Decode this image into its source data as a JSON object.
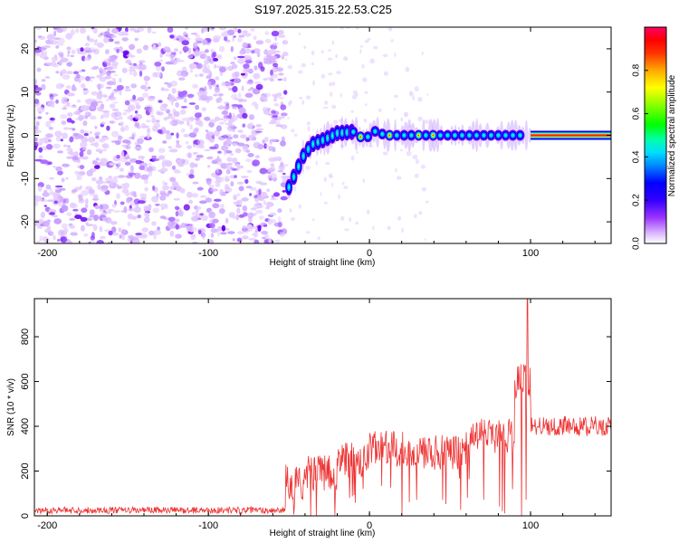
{
  "figure_title": "S197.2025.315.22.53.C25",
  "chart_data": [
    {
      "type": "heatmap",
      "name": "spectrogram",
      "xlabel": "Height of straight line (km)",
      "ylabel": "Frequency (Hz)",
      "xlim": [
        -208,
        150
      ],
      "ylim": [
        -25,
        25
      ],
      "xticks": [
        -200,
        -100,
        0,
        100
      ],
      "yticks": [
        -20,
        -10,
        0,
        10,
        20
      ],
      "colorbar": {
        "label": "Normalized spectral amplitude",
        "range": [
          0,
          1
        ],
        "ticks": [
          "0.0",
          "0.2",
          "0.4",
          "0.6",
          "0.8"
        ],
        "colormap": [
          "#ffffff",
          "#d9b3ff",
          "#9933ff",
          "#5500ee",
          "#0000ff",
          "#00aaff",
          "#00ffcc",
          "#00ff00",
          "#99ff00",
          "#ffff00",
          "#ff9900",
          "#ff0000",
          "#ff0066"
        ]
      },
      "noise_region_km": [
        -208,
        -52
      ],
      "carrier_track": [
        {
          "x": -50,
          "f": -12
        },
        {
          "x": -45,
          "f": -8
        },
        {
          "x": -40,
          "f": -4
        },
        {
          "x": -35,
          "f": -2
        },
        {
          "x": -28,
          "f": -1
        },
        {
          "x": -20,
          "f": 0.5
        },
        {
          "x": -10,
          "f": 0.8
        },
        {
          "x": -3,
          "f": -1
        },
        {
          "x": 3,
          "f": 1
        },
        {
          "x": 10,
          "f": 0
        },
        {
          "x": 60,
          "f": 0
        },
        {
          "x": 100,
          "f": 0
        },
        {
          "x": 150,
          "f": 0
        }
      ]
    },
    {
      "type": "line",
      "name": "snr",
      "xlabel": "Height of straight line (km)",
      "ylabel": "SNR (10 * v/v)",
      "xlim": [
        -208,
        150
      ],
      "ylim": [
        0,
        970
      ],
      "xticks": [
        -200,
        -100,
        0,
        100
      ],
      "yticks": [
        0,
        200,
        400,
        600,
        800
      ],
      "color": "#ee3333",
      "series": [
        {
          "name": "SNR",
          "segments": [
            {
              "x": [
                -208,
                -52
              ],
              "level": 25
            },
            {
              "x": [
                -52,
                -40
              ],
              "level": 150
            },
            {
              "x": [
                -40,
                -20
              ],
              "level": 190
            },
            {
              "x": [
                -20,
                0
              ],
              "level": 250
            },
            {
              "x": [
                0,
                30
              ],
              "level": 300
            },
            {
              "x": [
                30,
                60
              ],
              "level": 280
            },
            {
              "x": [
                60,
                90
              ],
              "level": 360
            },
            {
              "x": [
                90,
                100
              ],
              "level": 600
            },
            {
              "x": [
                100,
                150
              ],
              "level": 400
            }
          ],
          "peak": {
            "x": 98,
            "y": 970
          }
        }
      ]
    }
  ]
}
